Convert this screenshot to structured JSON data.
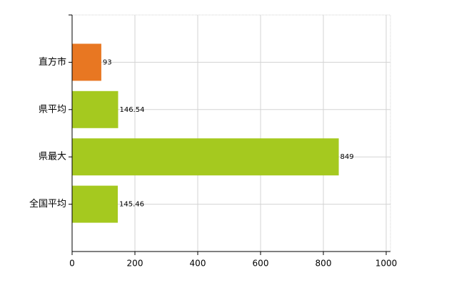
{
  "chart_data": {
    "type": "bar",
    "orientation": "horizontal",
    "categories": [
      "直方市",
      "県平均",
      "県最大",
      "全国平均"
    ],
    "values": [
      93,
      146.54,
      849,
      145.46
    ],
    "colors": [
      "#e87722",
      "#a5c91f",
      "#a5c91f",
      "#a5c91f"
    ],
    "xlim": [
      0,
      1000
    ],
    "xticks": [
      0,
      200,
      400,
      600,
      800,
      1000
    ],
    "grid": true
  }
}
